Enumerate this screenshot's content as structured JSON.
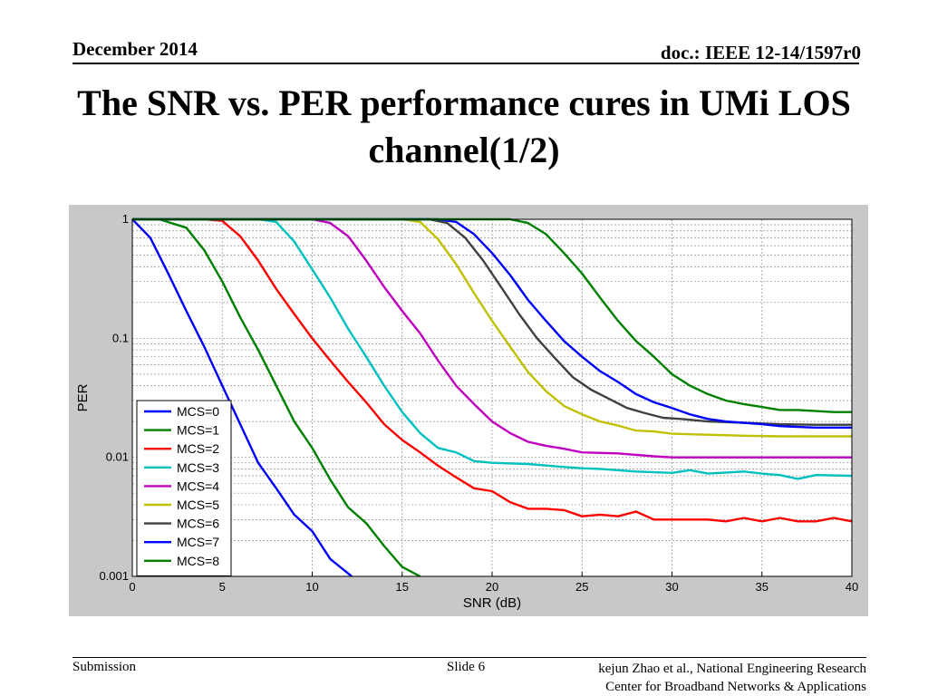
{
  "header": {
    "date": "December 2014",
    "doc": "doc.: IEEE 12-14/1597r0"
  },
  "slide_title": "The SNR vs. PER performance cures in UMi LOS channel(1/2)",
  "footer": {
    "left": "Submission",
    "slide": "Slide 6",
    "author_line1": "kejun Zhao et al., National Engineering Research",
    "author_line2": "Center for Broadband Networks & Applications"
  },
  "chart_data": {
    "type": "line",
    "title": "",
    "xlabel": "SNR (dB)",
    "ylabel": "PER",
    "xlim": [
      0,
      40
    ],
    "ylim": [
      0.001,
      1
    ],
    "yscale": "log",
    "grid": true,
    "legend_position": "bottom-left",
    "x_ticks": [
      "0",
      "5",
      "10",
      "15",
      "20",
      "25",
      "30",
      "35",
      "40"
    ],
    "y_ticks": [
      "0.001",
      "0.01",
      "0.1",
      "1"
    ],
    "series": [
      {
        "name": "MCS=0",
        "color": "#0000ff",
        "points": [
          [
            0,
            1
          ],
          [
            1,
            0.7
          ],
          [
            2,
            0.35
          ],
          [
            3,
            0.17
          ],
          [
            4,
            0.085
          ],
          [
            5,
            0.04
          ],
          [
            6,
            0.019
          ],
          [
            7,
            0.009
          ],
          [
            8,
            0.0055
          ],
          [
            9,
            0.0033
          ],
          [
            10,
            0.0024
          ],
          [
            11,
            0.0014
          ],
          [
            12.2,
            0.001
          ]
        ]
      },
      {
        "name": "MCS=1",
        "color": "#008000",
        "points": [
          [
            0,
            1
          ],
          [
            1.5,
            1
          ],
          [
            3,
            0.85
          ],
          [
            4,
            0.55
          ],
          [
            5,
            0.3
          ],
          [
            6,
            0.15
          ],
          [
            7,
            0.08
          ],
          [
            8,
            0.04
          ],
          [
            9,
            0.02
          ],
          [
            10,
            0.012
          ],
          [
            11,
            0.0065
          ],
          [
            12,
            0.0038
          ],
          [
            13,
            0.0028
          ],
          [
            14,
            0.0018
          ],
          [
            15,
            0.0012
          ],
          [
            16,
            0.001
          ]
        ]
      },
      {
        "name": "MCS=2",
        "color": "#ff0000",
        "points": [
          [
            0,
            1
          ],
          [
            4,
            1
          ],
          [
            5,
            0.97
          ],
          [
            6,
            0.72
          ],
          [
            7,
            0.45
          ],
          [
            8,
            0.26
          ],
          [
            9,
            0.16
          ],
          [
            10,
            0.1
          ],
          [
            11,
            0.065
          ],
          [
            12,
            0.043
          ],
          [
            13,
            0.029
          ],
          [
            14,
            0.019
          ],
          [
            15,
            0.014
          ],
          [
            16,
            0.011
          ],
          [
            17,
            0.0085
          ],
          [
            18,
            0.0068
          ],
          [
            19,
            0.0055
          ],
          [
            20,
            0.0052
          ],
          [
            21,
            0.0042
          ],
          [
            22,
            0.0037
          ],
          [
            23,
            0.0037
          ],
          [
            24,
            0.0036
          ],
          [
            25,
            0.0032
          ],
          [
            26,
            0.0033
          ],
          [
            27,
            0.0032
          ],
          [
            28,
            0.0035
          ],
          [
            29,
            0.003
          ],
          [
            30,
            0.003
          ],
          [
            31,
            0.003
          ],
          [
            32,
            0.003
          ],
          [
            33,
            0.0029
          ],
          [
            34,
            0.0031
          ],
          [
            35,
            0.0029
          ],
          [
            36,
            0.0031
          ],
          [
            37,
            0.0029
          ],
          [
            38,
            0.0029
          ],
          [
            39,
            0.0031
          ],
          [
            40,
            0.0029
          ]
        ]
      },
      {
        "name": "MCS=3",
        "color": "#00c0c0",
        "points": [
          [
            0,
            1
          ],
          [
            7,
            1
          ],
          [
            8,
            0.95
          ],
          [
            9,
            0.65
          ],
          [
            10,
            0.38
          ],
          [
            11,
            0.22
          ],
          [
            12,
            0.12
          ],
          [
            13,
            0.07
          ],
          [
            14,
            0.04
          ],
          [
            15,
            0.024
          ],
          [
            16,
            0.016
          ],
          [
            17,
            0.012
          ],
          [
            18,
            0.011
          ],
          [
            19,
            0.0093
          ],
          [
            20,
            0.009
          ],
          [
            22,
            0.0088
          ],
          [
            24,
            0.0083
          ],
          [
            25,
            0.0081
          ],
          [
            26,
            0.008
          ],
          [
            28,
            0.0076
          ],
          [
            30,
            0.0074
          ],
          [
            31,
            0.0078
          ],
          [
            32,
            0.0073
          ],
          [
            34,
            0.0076
          ],
          [
            35,
            0.0073
          ],
          [
            36,
            0.0071
          ],
          [
            37,
            0.0066
          ],
          [
            38,
            0.0071
          ],
          [
            40,
            0.007
          ]
        ]
      },
      {
        "name": "MCS=4",
        "color": "#c000c0",
        "points": [
          [
            0,
            1
          ],
          [
            10,
            1
          ],
          [
            11,
            0.93
          ],
          [
            12,
            0.72
          ],
          [
            13,
            0.45
          ],
          [
            14,
            0.27
          ],
          [
            15,
            0.17
          ],
          [
            16,
            0.11
          ],
          [
            17,
            0.065
          ],
          [
            18,
            0.04
          ],
          [
            19,
            0.028
          ],
          [
            20,
            0.02
          ],
          [
            21,
            0.016
          ],
          [
            22,
            0.0135
          ],
          [
            23,
            0.0125
          ],
          [
            24,
            0.0118
          ],
          [
            25,
            0.011
          ],
          [
            27,
            0.0108
          ],
          [
            29,
            0.0102
          ],
          [
            30,
            0.01
          ],
          [
            33,
            0.01
          ],
          [
            35,
            0.01
          ],
          [
            40,
            0.01
          ]
        ]
      },
      {
        "name": "MCS=5",
        "color": "#c0c000",
        "points": [
          [
            0,
            1
          ],
          [
            15,
            1
          ],
          [
            16,
            0.95
          ],
          [
            17,
            0.68
          ],
          [
            18,
            0.42
          ],
          [
            19,
            0.24
          ],
          [
            20,
            0.14
          ],
          [
            21,
            0.085
          ],
          [
            22,
            0.052
          ],
          [
            23,
            0.036
          ],
          [
            24,
            0.027
          ],
          [
            25,
            0.023
          ],
          [
            26,
            0.02
          ],
          [
            27,
            0.0185
          ],
          [
            28,
            0.0168
          ],
          [
            29,
            0.0165
          ],
          [
            30,
            0.0158
          ],
          [
            32,
            0.0155
          ],
          [
            34,
            0.0152
          ],
          [
            36,
            0.015
          ],
          [
            40,
            0.015
          ]
        ]
      },
      {
        "name": "MCS=6",
        "color": "#404040",
        "points": [
          [
            0,
            1
          ],
          [
            16.5,
            1
          ],
          [
            17.5,
            0.93
          ],
          [
            18.5,
            0.7
          ],
          [
            19.5,
            0.45
          ],
          [
            20.5,
            0.27
          ],
          [
            21.5,
            0.16
          ],
          [
            22.5,
            0.1
          ],
          [
            23.5,
            0.068
          ],
          [
            24.5,
            0.047
          ],
          [
            25.5,
            0.037
          ],
          [
            26.5,
            0.031
          ],
          [
            27.5,
            0.026
          ],
          [
            28.5,
            0.0235
          ],
          [
            29.5,
            0.0215
          ],
          [
            30.5,
            0.021
          ],
          [
            32,
            0.02
          ],
          [
            34,
            0.0195
          ],
          [
            36,
            0.019
          ],
          [
            38,
            0.0188
          ],
          [
            40,
            0.0188
          ]
        ]
      },
      {
        "name": "MCS=7",
        "color": "#0000ff",
        "points": [
          [
            0,
            1
          ],
          [
            17,
            1
          ],
          [
            18,
            0.95
          ],
          [
            19,
            0.75
          ],
          [
            20,
            0.52
          ],
          [
            21,
            0.34
          ],
          [
            22,
            0.21
          ],
          [
            23,
            0.14
          ],
          [
            24,
            0.095
          ],
          [
            25,
            0.07
          ],
          [
            26,
            0.053
          ],
          [
            27,
            0.043
          ],
          [
            28,
            0.034
          ],
          [
            29,
            0.029
          ],
          [
            30,
            0.026
          ],
          [
            31,
            0.023
          ],
          [
            32,
            0.021
          ],
          [
            33,
            0.02
          ],
          [
            34,
            0.0195
          ],
          [
            35,
            0.019
          ],
          [
            36,
            0.0183
          ],
          [
            37,
            0.018
          ],
          [
            38,
            0.0178
          ],
          [
            39,
            0.0178
          ],
          [
            40,
            0.0178
          ]
        ]
      },
      {
        "name": "MCS=8",
        "color": "#008000",
        "points": [
          [
            0,
            1
          ],
          [
            21,
            1
          ],
          [
            22,
            0.93
          ],
          [
            23,
            0.75
          ],
          [
            24,
            0.52
          ],
          [
            25,
            0.35
          ],
          [
            26,
            0.22
          ],
          [
            27,
            0.14
          ],
          [
            28,
            0.095
          ],
          [
            29,
            0.07
          ],
          [
            30,
            0.05
          ],
          [
            31,
            0.04
          ],
          [
            32,
            0.034
          ],
          [
            33,
            0.03
          ],
          [
            34,
            0.028
          ],
          [
            35,
            0.0265
          ],
          [
            36,
            0.025
          ],
          [
            37,
            0.025
          ],
          [
            38,
            0.0245
          ],
          [
            39,
            0.024
          ],
          [
            40,
            0.024
          ]
        ]
      }
    ]
  }
}
